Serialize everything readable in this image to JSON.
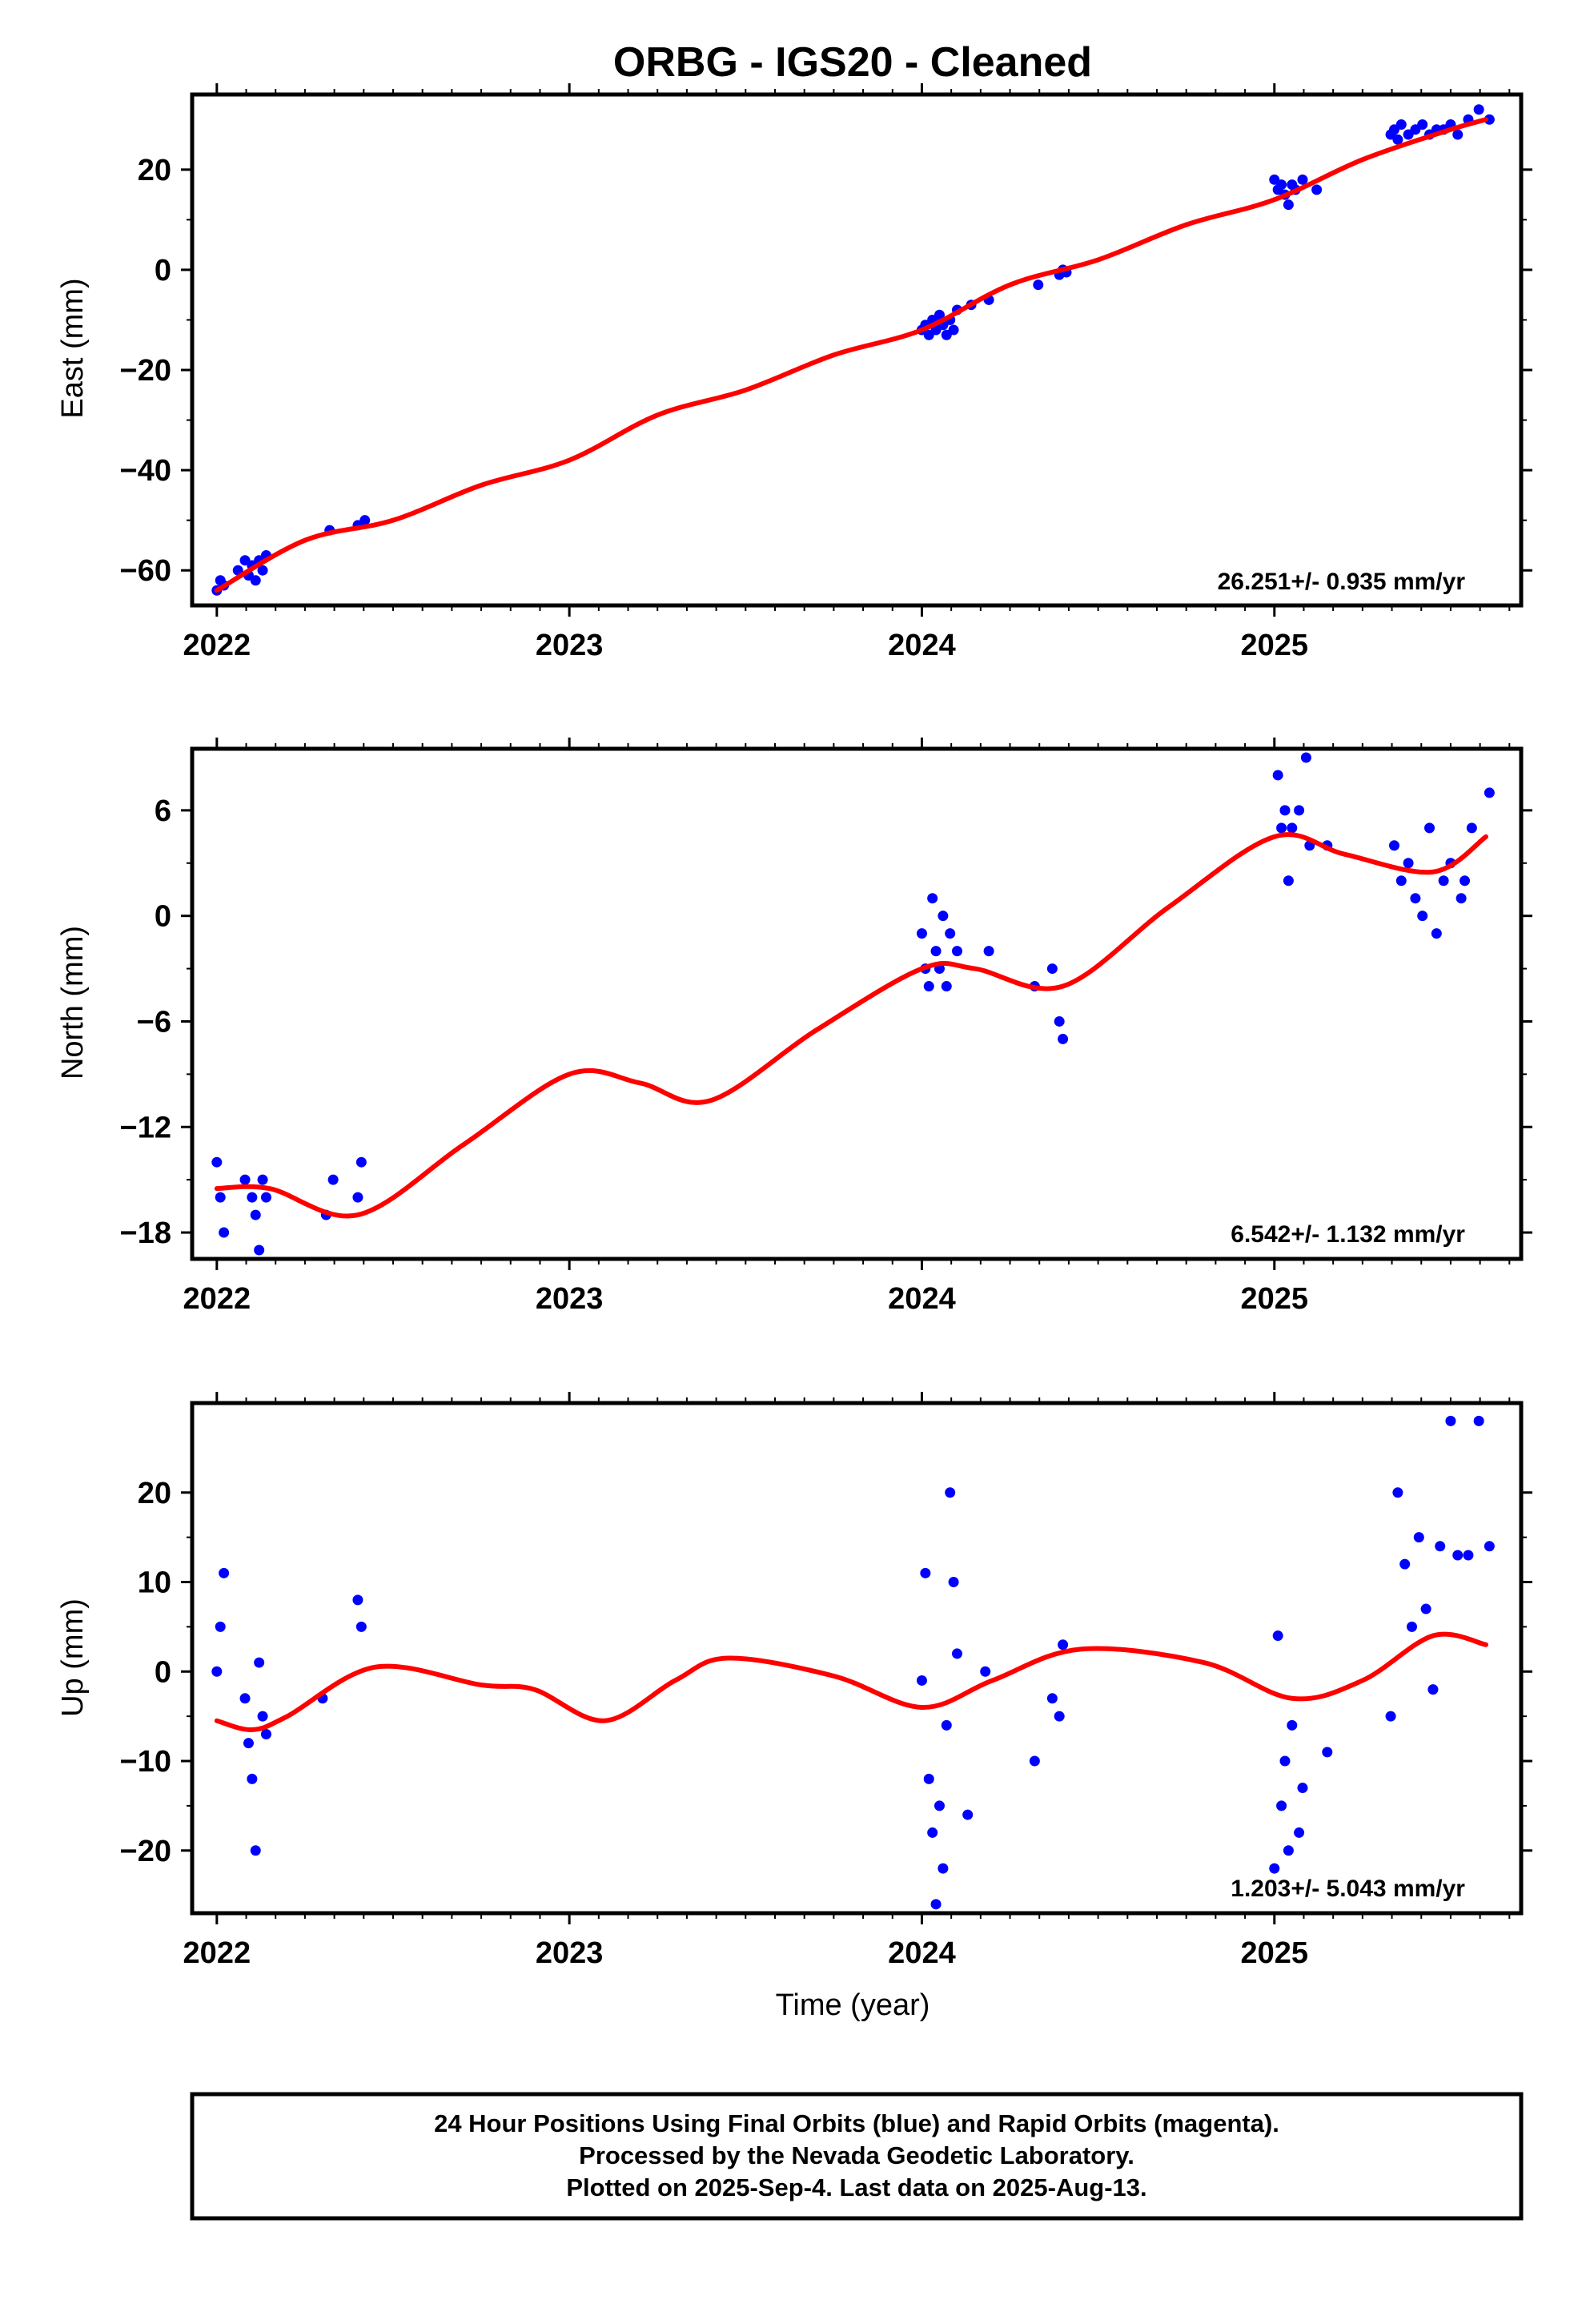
{
  "title": "ORBG  - IGS20 - Cleaned",
  "xlabel": "Time (year)",
  "footer": {
    "line1": "24 Hour Positions Using Final Orbits (blue) and Rapid Orbits (magenta).",
    "line2": "Processed by the Nevada Geodetic Laboratory.",
    "line3": "Plotted on 2025-Sep-4. Last data on 2025-Aug-13."
  },
  "colors": {
    "points": "#0000ff",
    "fit": "#ff0000",
    "axes": "#000000"
  },
  "chart_data": [
    {
      "type": "scatter",
      "ylabel": "East (mm)",
      "rate": "26.251+/- 0.935 mm/yr",
      "xlim": [
        2021.93,
        2025.7
      ],
      "ylim": [
        -67,
        35
      ],
      "xticks": [
        2022,
        2023,
        2024,
        2025
      ],
      "xtick_labels": [
        "2022",
        "2023",
        "2024",
        "2025"
      ],
      "yticks": [
        -60,
        -40,
        -20,
        0,
        20
      ],
      "ytick_labels": [
        "−60",
        "−40",
        "−20",
        "0",
        "20"
      ],
      "series": [
        {
          "kind": "points",
          "x": [
            2022.0,
            2022.01,
            2022.02,
            2022.06,
            2022.08,
            2022.09,
            2022.1,
            2022.11,
            2022.12,
            2022.13,
            2022.14,
            2022.32,
            2022.4,
            2022.42,
            2024.0,
            2024.01,
            2024.02,
            2024.03,
            2024.04,
            2024.05,
            2024.06,
            2024.07,
            2024.08,
            2024.09,
            2024.1,
            2024.14,
            2024.19,
            2024.33,
            2024.39,
            2024.4,
            2024.41,
            2025.0,
            2025.01,
            2025.02,
            2025.03,
            2025.04,
            2025.05,
            2025.06,
            2025.08,
            2025.12,
            2025.33,
            2025.34,
            2025.35,
            2025.36,
            2025.38,
            2025.4,
            2025.42,
            2025.44,
            2025.46,
            2025.48,
            2025.5,
            2025.52,
            2025.55,
            2025.58,
            2025.61
          ],
          "y": [
            -64,
            -62,
            -63,
            -60,
            -58,
            -61,
            -59,
            -62,
            -58,
            -60,
            -57,
            -52,
            -51,
            -50,
            -12,
            -11,
            -13,
            -10,
            -12,
            -9,
            -11,
            -13,
            -10,
            -12,
            -8,
            -7,
            -6,
            -3,
            -1,
            0,
            -0.5,
            18,
            16,
            17,
            15,
            13,
            17,
            16,
            18,
            16,
            27,
            28,
            26,
            29,
            27,
            28,
            29,
            27,
            28,
            28,
            29,
            27,
            30,
            32,
            30
          ]
        },
        {
          "kind": "fit",
          "x": [
            2022.0,
            2022.25,
            2022.5,
            2022.75,
            2023.0,
            2023.25,
            2023.5,
            2023.75,
            2024.0,
            2024.25,
            2024.5,
            2024.75,
            2025.0,
            2025.25,
            2025.5,
            2025.6
          ],
          "y": [
            -64,
            -54,
            -50,
            -43,
            -38,
            -29,
            -24,
            -17,
            -12,
            -3,
            2,
            9,
            14,
            22,
            28,
            30
          ]
        }
      ]
    },
    {
      "type": "scatter",
      "ylabel": "North (mm)",
      "rate": "6.542+/- 1.132 mm/yr",
      "xlim": [
        2021.93,
        2025.7
      ],
      "ylim": [
        -19.5,
        9.5
      ],
      "xticks": [
        2022,
        2023,
        2024,
        2025
      ],
      "xtick_labels": [
        "2022",
        "2023",
        "2024",
        "2025"
      ],
      "yticks": [
        -18,
        -12,
        -6,
        0,
        6
      ],
      "ytick_labels": [
        "−18",
        "−12",
        "−6",
        "0",
        "6"
      ],
      "series": [
        {
          "kind": "points",
          "x": [
            2022.0,
            2022.01,
            2022.02,
            2022.08,
            2022.1,
            2022.11,
            2022.12,
            2022.13,
            2022.14,
            2022.31,
            2022.33,
            2022.4,
            2022.41,
            2024.0,
            2024.01,
            2024.02,
            2024.03,
            2024.04,
            2024.05,
            2024.06,
            2024.07,
            2024.08,
            2024.1,
            2024.19,
            2024.32,
            2024.37,
            2024.39,
            2024.4,
            2025.01,
            2025.02,
            2025.03,
            2025.04,
            2025.05,
            2025.07,
            2025.09,
            2025.1,
            2025.15,
            2025.34,
            2025.36,
            2025.38,
            2025.4,
            2025.42,
            2025.44,
            2025.46,
            2025.48,
            2025.5,
            2025.53,
            2025.54,
            2025.56,
            2025.61
          ],
          "y": [
            -14,
            -16,
            -18,
            -15,
            -16,
            -17,
            -19,
            -15,
            -16,
            -17,
            -15,
            -16,
            -14,
            -1,
            -3,
            -4,
            1,
            -2,
            -3,
            0,
            -4,
            -1,
            -2,
            -2,
            -4,
            -3,
            -6,
            -7,
            8,
            5,
            6,
            2,
            5,
            6,
            9,
            4,
            4,
            4,
            2,
            3,
            1,
            0,
            5,
            -1,
            2,
            3,
            1,
            2,
            5,
            7
          ]
        },
        {
          "kind": "fit",
          "x": [
            2022.0,
            2022.15,
            2022.4,
            2022.7,
            2023.0,
            2023.2,
            2023.4,
            2023.7,
            2024.0,
            2024.15,
            2024.4,
            2024.7,
            2025.0,
            2025.2,
            2025.45,
            2025.6
          ],
          "y": [
            -15.5,
            -15.5,
            -17,
            -13,
            -9,
            -9.5,
            -10.5,
            -6.5,
            -3,
            -3,
            -4,
            0.5,
            4.5,
            3.5,
            2.5,
            4.5
          ]
        }
      ]
    },
    {
      "type": "scatter",
      "ylabel": "Up (mm)",
      "rate": "1.203+/- 5.043 mm/yr",
      "xlim": [
        2021.93,
        2025.7
      ],
      "ylim": [
        -27,
        30
      ],
      "xticks": [
        2022,
        2023,
        2024,
        2025
      ],
      "xtick_labels": [
        "2022",
        "2023",
        "2024",
        "2025"
      ],
      "yticks": [
        -20,
        -10,
        0,
        10,
        20
      ],
      "ytick_labels": [
        "−20",
        "−10",
        "0",
        "10",
        "20"
      ],
      "series": [
        {
          "kind": "points",
          "x": [
            2022.0,
            2022.01,
            2022.02,
            2022.08,
            2022.09,
            2022.1,
            2022.11,
            2022.12,
            2022.13,
            2022.14,
            2022.3,
            2022.4,
            2022.41,
            2024.0,
            2024.01,
            2024.02,
            2024.03,
            2024.04,
            2024.05,
            2024.06,
            2024.07,
            2024.08,
            2024.09,
            2024.1,
            2024.13,
            2024.18,
            2024.32,
            2024.37,
            2024.39,
            2024.4,
            2025.0,
            2025.01,
            2025.02,
            2025.03,
            2025.04,
            2025.05,
            2025.07,
            2025.08,
            2025.15,
            2025.33,
            2025.35,
            2025.37,
            2025.39,
            2025.41,
            2025.43,
            2025.45,
            2025.47,
            2025.5,
            2025.52,
            2025.55,
            2025.58,
            2025.61
          ],
          "y": [
            0,
            5,
            11,
            -3,
            -8,
            -12,
            -20,
            1,
            -5,
            -7,
            -3,
            8,
            5,
            -1,
            11,
            -12,
            -18,
            -26,
            -15,
            -22,
            -6,
            20,
            10,
            2,
            -16,
            0,
            -10,
            -3,
            -5,
            3,
            -22,
            4,
            -15,
            -10,
            -20,
            -6,
            -18,
            -13,
            -9,
            -5,
            20,
            12,
            5,
            15,
            7,
            -2,
            14,
            28,
            13,
            13,
            28,
            14
          ]
        },
        {
          "kind": "fit",
          "x": [
            2022.0,
            2022.1,
            2022.2,
            2022.45,
            2022.75,
            2022.9,
            2023.1,
            2023.3,
            2023.45,
            2023.75,
            2024.0,
            2024.2,
            2024.45,
            2024.8,
            2025.05,
            2025.25,
            2025.45,
            2025.6
          ],
          "y": [
            -5.5,
            -6.5,
            -5,
            0.5,
            -1.5,
            -2,
            -5.5,
            -1,
            1.5,
            -0.5,
            -4,
            -1,
            2.5,
            1,
            -3,
            -1,
            4,
            3
          ]
        }
      ]
    }
  ]
}
